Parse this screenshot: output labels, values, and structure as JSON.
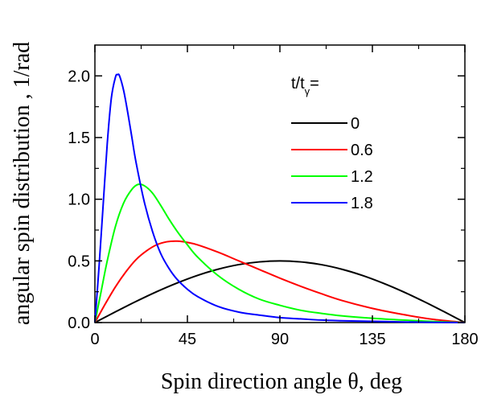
{
  "chart_data": {
    "type": "line",
    "xlabel": "Spin direction angle θ, deg",
    "ylabel": "angular spin distribution , 1/rad",
    "xlim": [
      0,
      180
    ],
    "ylim": [
      0,
      2.25
    ],
    "xticks": [
      0,
      45,
      90,
      135,
      180
    ],
    "xtick_labels": [
      "0",
      "45",
      "90",
      "135",
      "180"
    ],
    "yticks": [
      0,
      0.5,
      1.0,
      1.5,
      2.0
    ],
    "ytick_labels": [
      "0.0",
      "0.5",
      "1.0",
      "1.5",
      "2.0"
    ],
    "grid": false,
    "legend": {
      "title_main": "t/t",
      "title_sub": "γ",
      "title_eq": "=",
      "placement": "top-right"
    },
    "series": [
      {
        "name": "0",
        "color": "#000000",
        "x": [
          0,
          10,
          20,
          30,
          40,
          50,
          60,
          70,
          80,
          90,
          100,
          110,
          120,
          130,
          140,
          150,
          160,
          170,
          180
        ],
        "y": [
          0,
          0.087,
          0.171,
          0.25,
          0.321,
          0.383,
          0.433,
          0.47,
          0.492,
          0.5,
          0.492,
          0.47,
          0.433,
          0.383,
          0.321,
          0.25,
          0.171,
          0.087,
          0
        ]
      },
      {
        "name": "0.6",
        "color": "#ff0000",
        "x": [
          0,
          5,
          10,
          15,
          20,
          25,
          30,
          35,
          40,
          45,
          50,
          60,
          70,
          80,
          90,
          100,
          110,
          120,
          135,
          150,
          165,
          180
        ],
        "y": [
          0,
          0.15,
          0.29,
          0.41,
          0.51,
          0.58,
          0.63,
          0.655,
          0.66,
          0.65,
          0.63,
          0.57,
          0.5,
          0.43,
          0.36,
          0.295,
          0.235,
          0.18,
          0.115,
          0.065,
          0.025,
          0
        ]
      },
      {
        "name": "1.2",
        "color": "#00ff00",
        "x": [
          0,
          3,
          6,
          10,
          14,
          18,
          21,
          24,
          28,
          32,
          36,
          40,
          45,
          50,
          60,
          70,
          80,
          90,
          100,
          110,
          120,
          135,
          150,
          165,
          180
        ],
        "y": [
          0,
          0.25,
          0.5,
          0.78,
          0.97,
          1.08,
          1.12,
          1.11,
          1.05,
          0.95,
          0.84,
          0.74,
          0.63,
          0.53,
          0.38,
          0.27,
          0.19,
          0.14,
          0.1,
          0.075,
          0.055,
          0.035,
          0.02,
          0.008,
          0
        ]
      },
      {
        "name": "1.8",
        "color": "#0000ff",
        "x": [
          0,
          2,
          4,
          6,
          8,
          10,
          11,
          12,
          14,
          16,
          18,
          20,
          24,
          28,
          32,
          36,
          40,
          45,
          50,
          60,
          70,
          80,
          90,
          100,
          110,
          120,
          135,
          150,
          165,
          180
        ],
        "y": [
          0,
          0.45,
          0.95,
          1.45,
          1.82,
          1.99,
          2.01,
          2.0,
          1.88,
          1.7,
          1.5,
          1.3,
          0.98,
          0.74,
          0.56,
          0.44,
          0.35,
          0.27,
          0.21,
          0.13,
          0.085,
          0.06,
          0.04,
          0.03,
          0.02,
          0.015,
          0.01,
          0.005,
          0.002,
          0
        ]
      }
    ]
  }
}
